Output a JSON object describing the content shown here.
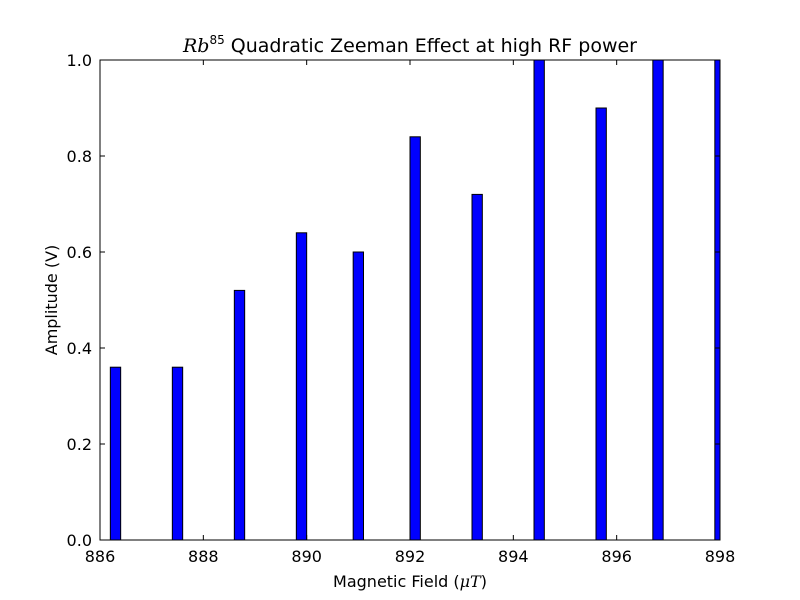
{
  "chart_data": {
    "type": "bar",
    "title": {
      "math": "Rb",
      "math_sup": "85",
      "text": " Quadratic Zeeman Effect at high RF power"
    },
    "xlabel": {
      "text": "Magnetic Field (",
      "math": "μT",
      "close": ")"
    },
    "ylabel": "Amplitude (V)",
    "xlim": [
      886,
      898
    ],
    "ylim": [
      0,
      1.0
    ],
    "xticks": [
      886,
      888,
      890,
      892,
      894,
      896,
      898
    ],
    "xtick_labels": [
      "886",
      "888",
      "890",
      "892",
      "894",
      "896",
      "898"
    ],
    "yticks": [
      0,
      0.2,
      0.4,
      0.6,
      0.8,
      1.0
    ],
    "ytick_labels": [
      "0.0",
      "0.2",
      "0.4",
      "0.6",
      "0.8",
      "1.0"
    ],
    "bar_width": 0.2,
    "bar_color": "#0000ff",
    "grid": false,
    "x": [
      886.2,
      887.4,
      888.6,
      889.8,
      890.9,
      892.0,
      893.2,
      894.4,
      895.6,
      896.7,
      897.9
    ],
    "values": [
      0.36,
      0.36,
      0.52,
      0.64,
      0.6,
      0.84,
      0.72,
      1.0,
      0.9,
      1.0,
      1.0
    ]
  }
}
